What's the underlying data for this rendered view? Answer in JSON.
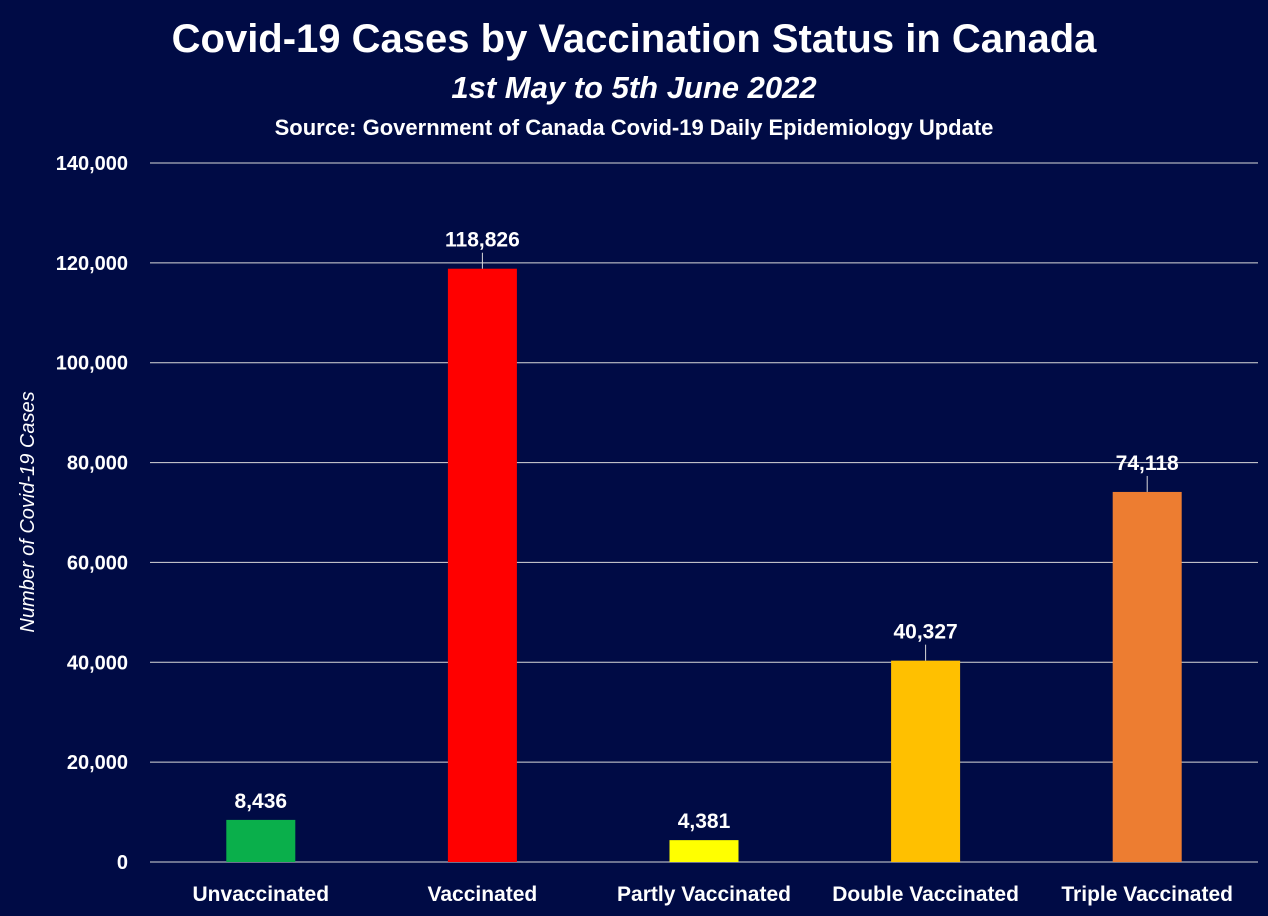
{
  "chart_data": {
    "type": "bar",
    "title": "Covid-19 Cases by Vaccination Status in Canada",
    "subtitle": "1st May to 5th June 2022",
    "source": "Source: Government of Canada Covid-19 Daily Epidemiology Update",
    "xlabel": "",
    "ylabel": "Number of Covid-19 Cases",
    "ylim": [
      0,
      140000
    ],
    "yticks": [
      0,
      20000,
      40000,
      60000,
      80000,
      100000,
      120000,
      140000
    ],
    "ytick_labels": [
      "0",
      "20,000",
      "40,000",
      "60,000",
      "80,000",
      "100,000",
      "120,000",
      "140,000"
    ],
    "grid": true,
    "legend": "none",
    "categories": [
      "Unvaccinated",
      "Vaccinated",
      "Partly Vaccinated",
      "Double Vaccinated",
      "Triple Vaccinated"
    ],
    "values": [
      8436,
      118826,
      4381,
      40327,
      74118
    ],
    "value_labels": [
      "8,436",
      "118,826",
      "4,381",
      "40,327",
      "74,118"
    ],
    "colors": [
      "#0aaf4b",
      "#ff0000",
      "#ffff00",
      "#ffc000",
      "#ed7d31"
    ],
    "background": "#000b45",
    "text_color": "#ffffff",
    "grid_color": "#d9d9d9"
  }
}
